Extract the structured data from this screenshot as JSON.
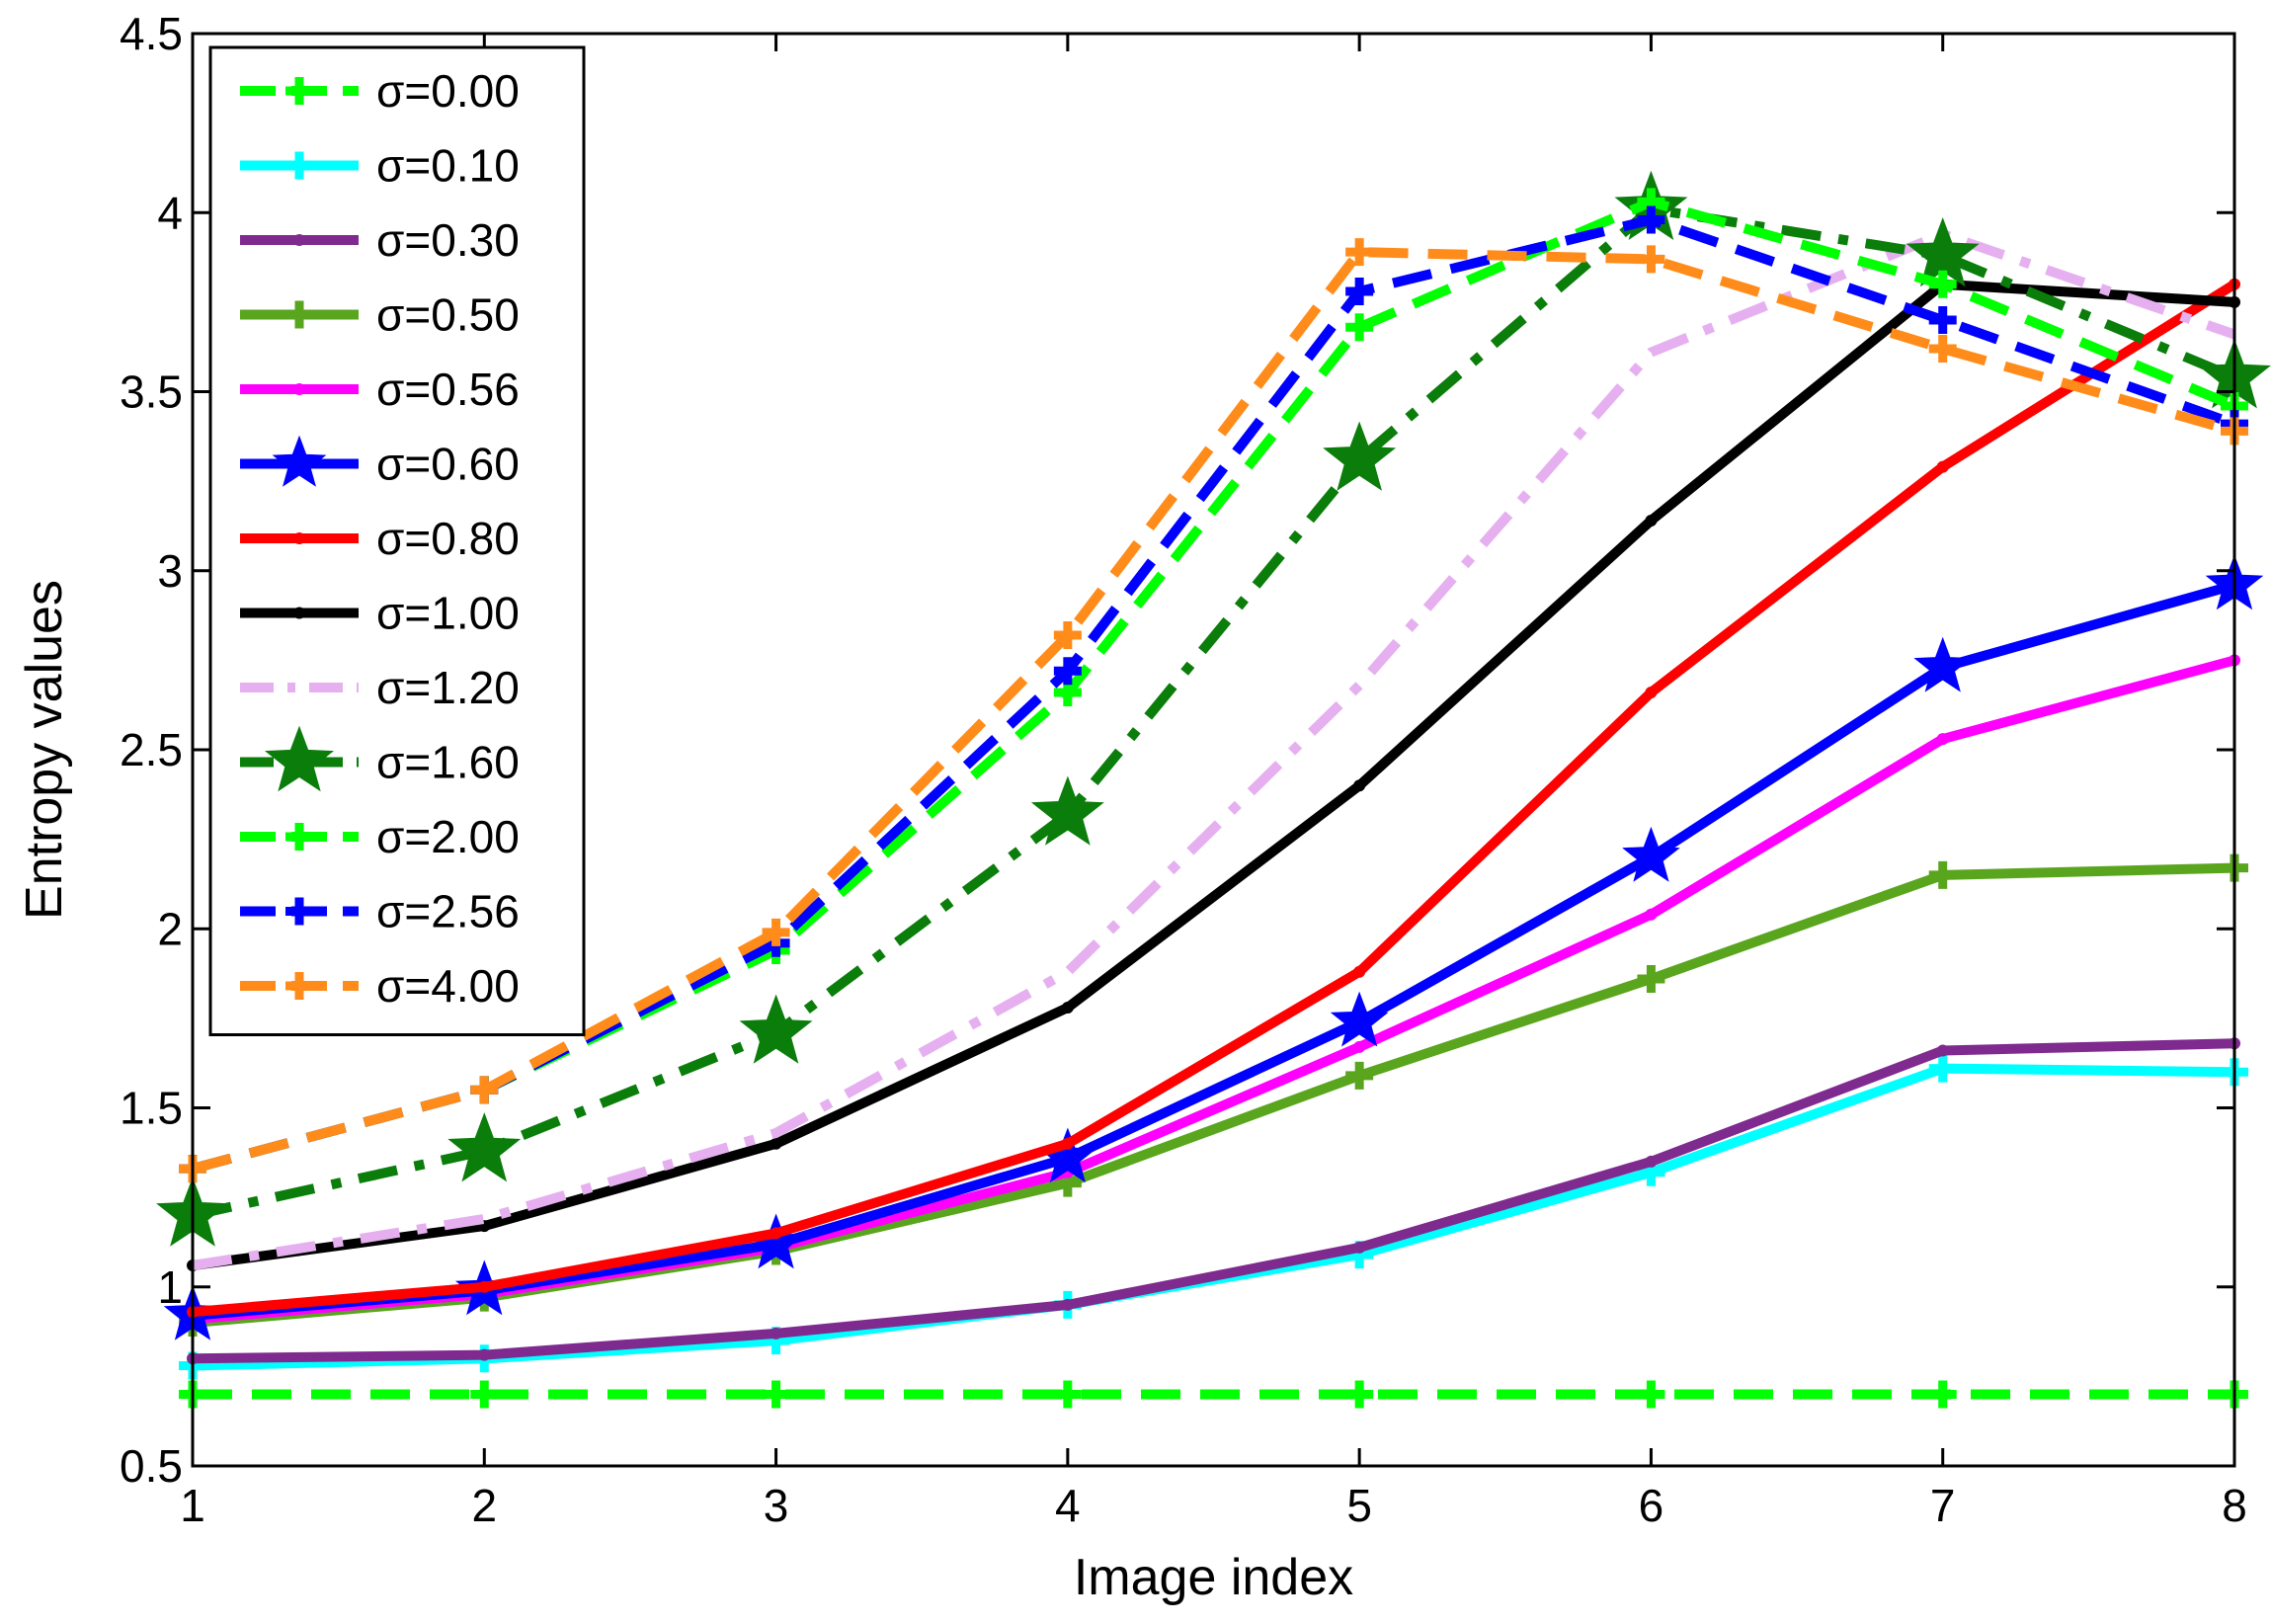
{
  "chart_data": {
    "type": "line",
    "title": "",
    "xlabel": "Image index",
    "ylabel": "Entropy values",
    "xlim": [
      1,
      8
    ],
    "ylim": [
      0.5,
      4.5
    ],
    "x": [
      1,
      2,
      3,
      4,
      5,
      6,
      7,
      8
    ],
    "xticks": [
      "1",
      "2",
      "3",
      "4",
      "5",
      "6",
      "7",
      "8"
    ],
    "yticks": [
      "0.5",
      "1",
      "1.5",
      "2",
      "2.5",
      "3",
      "3.5",
      "4",
      "4.5"
    ],
    "grid": false,
    "legend_position": "top-left",
    "series": [
      {
        "name": "σ=0.00",
        "color": "#00ff00",
        "dash": "dashed",
        "marker": "plus",
        "values": [
          0.7,
          0.7,
          0.7,
          0.7,
          0.7,
          0.7,
          0.7,
          0.7
        ]
      },
      {
        "name": "σ=0.10",
        "color": "#00ffff",
        "dash": "solid",
        "marker": "plus",
        "values": [
          0.78,
          0.8,
          0.85,
          0.95,
          1.09,
          1.32,
          1.61,
          1.6
        ]
      },
      {
        "name": "σ=0.30",
        "color": "#7f2a8f",
        "dash": "solid",
        "marker": "dot",
        "values": [
          0.8,
          0.81,
          0.87,
          0.95,
          1.11,
          1.35,
          1.66,
          1.68
        ]
      },
      {
        "name": "σ=0.50",
        "color": "#5aa51e",
        "dash": "solid",
        "marker": "plus",
        "values": [
          0.9,
          0.97,
          1.1,
          1.29,
          1.59,
          1.86,
          2.15,
          2.17
        ]
      },
      {
        "name": "σ=0.56",
        "color": "#ff00ff",
        "dash": "solid",
        "marker": "dot",
        "values": [
          0.91,
          0.98,
          1.11,
          1.32,
          1.67,
          2.04,
          2.53,
          2.75
        ]
      },
      {
        "name": "σ=0.60",
        "color": "#0000ff",
        "dash": "solid",
        "marker": "star",
        "values": [
          0.92,
          0.99,
          1.12,
          1.36,
          1.74,
          2.2,
          2.73,
          2.96
        ]
      },
      {
        "name": "σ=0.80",
        "color": "#ff0000",
        "dash": "solid",
        "marker": "dot",
        "values": [
          0.93,
          1.0,
          1.15,
          1.4,
          1.88,
          2.66,
          3.29,
          3.8
        ]
      },
      {
        "name": "σ=1.00",
        "color": "#000000",
        "dash": "solid",
        "marker": "dot",
        "values": [
          1.06,
          1.17,
          1.4,
          1.78,
          2.4,
          3.14,
          3.8,
          3.75
        ]
      },
      {
        "name": "σ=1.20",
        "color": "#e6b0f0",
        "dash": "dashdot",
        "marker": "none",
        "values": [
          1.06,
          1.19,
          1.43,
          1.88,
          2.68,
          3.61,
          3.94,
          3.66
        ]
      },
      {
        "name": "σ=1.60",
        "color": "#0a7d0a",
        "dash": "dashdot",
        "marker": "star",
        "values": [
          1.2,
          1.38,
          1.71,
          2.32,
          3.31,
          4.01,
          3.88,
          3.54
        ]
      },
      {
        "name": "σ=2.00",
        "color": "#00ff00",
        "dash": "dashed",
        "marker": "plus",
        "values": [
          1.33,
          1.55,
          1.94,
          2.66,
          3.68,
          4.03,
          3.8,
          3.46
        ]
      },
      {
        "name": "σ=2.56",
        "color": "#0000ff",
        "dash": "dashed",
        "marker": "plus",
        "values": [
          1.33,
          1.55,
          1.96,
          2.72,
          3.78,
          3.98,
          3.7,
          3.41
        ]
      },
      {
        "name": "σ=4.00",
        "color": "#ff8c1a",
        "dash": "dashed",
        "marker": "plus",
        "values": [
          1.33,
          1.55,
          1.99,
          2.82,
          3.89,
          3.87,
          3.62,
          3.39
        ]
      }
    ]
  }
}
